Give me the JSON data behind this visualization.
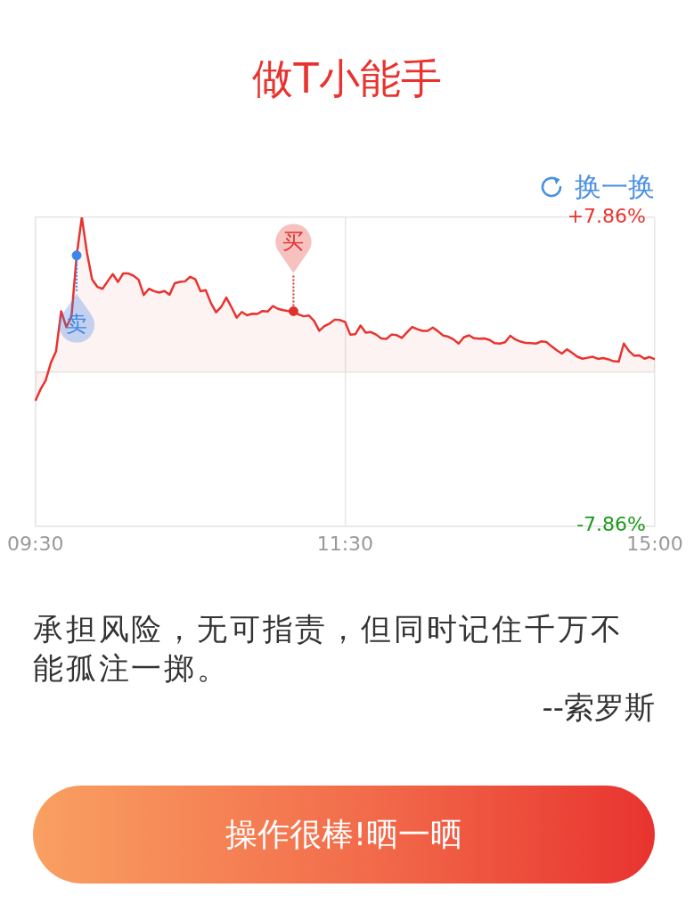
{
  "chart_data": {
    "type": "area",
    "title": "做T小能手",
    "marker": "none",
    "grid": true,
    "categories": [
      "09:30",
      null,
      null,
      null,
      null,
      null,
      null,
      null,
      null,
      null,
      null,
      null,
      null,
      null,
      null,
      null,
      null,
      null,
      null,
      null,
      null,
      null,
      null,
      null,
      null,
      null,
      null,
      null,
      null,
      null,
      null,
      null,
      null,
      null,
      null,
      null,
      null,
      null,
      null,
      null,
      null,
      null,
      null,
      null,
      null,
      null,
      null,
      null,
      null,
      null,
      null,
      null,
      null,
      null,
      null,
      null,
      null,
      null,
      null,
      null,
      "11:30",
      null,
      null,
      null,
      null,
      null,
      null,
      null,
      null,
      null,
      null,
      null,
      null,
      null,
      null,
      null,
      null,
      null,
      null,
      null,
      null,
      null,
      null,
      null,
      null,
      null,
      null,
      null,
      null,
      null,
      null,
      null,
      null,
      null,
      null,
      null,
      null,
      null,
      null,
      null,
      null,
      null,
      null,
      null,
      null,
      null,
      null,
      null,
      null,
      null,
      null,
      null,
      null,
      null,
      null,
      null,
      null,
      null,
      null,
      null,
      "15:00"
    ],
    "ylim": [
      -7.86,
      7.86
    ],
    "yticks": [
      {
        "value": -7.86,
        "label": "-7.86%"
      },
      {
        "value": 0,
        "label": null
      },
      {
        "value": 7.86,
        "label": "+7.86%"
      }
    ],
    "series": [
      {
        "color": "#e8332f",
        "values": [
          -1.48,
          -0.9,
          -0.45,
          0.45,
          1.03,
          3.08,
          2.27,
          2.81,
          5.92,
          7.86,
          6.05,
          4.7,
          4.32,
          4.22,
          4.6,
          4.97,
          4.57,
          5.0,
          5.0,
          4.89,
          4.68,
          3.9,
          4.22,
          4.1,
          4.03,
          4.11,
          3.92,
          4.5,
          4.57,
          4.6,
          4.83,
          4.7,
          4.1,
          4.15,
          3.5,
          3.02,
          3.3,
          3.77,
          3.28,
          2.75,
          3.04,
          2.87,
          2.95,
          2.94,
          3.09,
          3.06,
          3.34,
          3.2,
          3.13,
          3.09,
          3.08,
          2.91,
          2.82,
          2.86,
          2.58,
          2.08,
          2.32,
          2.45,
          2.65,
          2.63,
          2.53,
          1.89,
          1.91,
          2.35,
          1.99,
          2.02,
          1.89,
          1.69,
          1.67,
          1.89,
          1.86,
          1.72,
          2.0,
          2.28,
          2.16,
          2.08,
          2.08,
          2.25,
          2.06,
          1.84,
          1.78,
          1.64,
          1.43,
          1.75,
          1.85,
          1.7,
          1.68,
          1.69,
          1.61,
          1.45,
          1.43,
          1.5,
          1.83,
          1.64,
          1.53,
          1.46,
          1.45,
          1.43,
          1.54,
          1.51,
          1.29,
          1.09,
          0.92,
          1.14,
          0.95,
          0.76,
          0.66,
          0.71,
          0.76,
          0.65,
          0.69,
          0.63,
          0.53,
          0.51,
          1.43,
          1.05,
          0.81,
          0.83,
          0.66,
          0.75,
          0.63
        ]
      },
      {
        "type": "scatter",
        "name": "卖",
        "color": "#3b86e8",
        "marker": "circle",
        "values": [
          null,
          null,
          null,
          null,
          null,
          null,
          null,
          null,
          5.92,
          null,
          null,
          null,
          null,
          null,
          null,
          null,
          null,
          null,
          null,
          null,
          null,
          null,
          null,
          null,
          null,
          null,
          null,
          null,
          null,
          null,
          null,
          null,
          null,
          null,
          null,
          null,
          null,
          null,
          null,
          null,
          null,
          null,
          null,
          null,
          null,
          null,
          null,
          null,
          null,
          null,
          null,
          null,
          null,
          null,
          null,
          null,
          null,
          null,
          null,
          null,
          null,
          null,
          null,
          null,
          null,
          null,
          null,
          null,
          null,
          null,
          null,
          null,
          null,
          null,
          null,
          null,
          null,
          null,
          null,
          null,
          null,
          null,
          null,
          null,
          null,
          null,
          null,
          null,
          null,
          null,
          null,
          null,
          null,
          null,
          null,
          null,
          null,
          null,
          null,
          null,
          null,
          null,
          null,
          null,
          null,
          null,
          null,
          null,
          null,
          null,
          null,
          null,
          null,
          null,
          null,
          null,
          null,
          null,
          null,
          null,
          null
        ]
      },
      {
        "type": "scatter",
        "name": "买",
        "color": "#e0312c",
        "marker": "circle",
        "values": [
          null,
          null,
          null,
          null,
          null,
          null,
          null,
          null,
          null,
          null,
          null,
          null,
          null,
          null,
          null,
          null,
          null,
          null,
          null,
          null,
          null,
          null,
          null,
          null,
          null,
          null,
          null,
          null,
          null,
          null,
          null,
          null,
          null,
          null,
          null,
          null,
          null,
          null,
          null,
          null,
          null,
          null,
          null,
          null,
          null,
          null,
          null,
          null,
          null,
          null,
          3.08,
          null,
          null,
          null,
          null,
          null,
          null,
          null,
          null,
          null,
          null,
          null,
          null,
          null,
          null,
          null,
          null,
          null,
          null,
          null,
          null,
          null,
          null,
          null,
          null,
          null,
          null,
          null,
          null,
          null,
          null,
          null,
          null,
          null,
          null,
          null,
          null,
          null,
          null,
          null,
          null,
          null,
          null,
          null,
          null,
          null,
          null,
          null,
          null,
          null,
          null,
          null,
          null,
          null,
          null,
          null,
          null,
          null,
          null,
          null,
          null,
          null,
          null,
          null,
          null,
          null,
          null,
          null,
          null,
          null,
          null
        ]
      }
    ],
    "annotations": [
      "换一换",
      "承担风险，无可指责，但同时记住千万不能孤注一掷。",
      "--索罗斯",
      "操作很棒!晒一晒"
    ]
  }
}
